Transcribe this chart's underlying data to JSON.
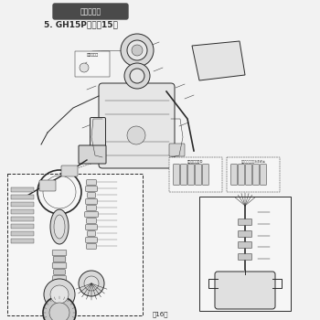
{
  "page_bg": "#f2f2f2",
  "line_color": "#2a2a2a",
  "title_box_text": "人力噴霧機",
  "subtitle_text": "5. GH15P・背負15型",
  "page_number": "－16－",
  "fig_width": 3.5,
  "fig_height": 3.5,
  "dpi": 100,
  "title_box_fill": "#4a4a4a",
  "title_text_color": "#ffffff",
  "lw_main": 0.7,
  "lw_thin": 0.35,
  "lw_thick": 1.0,
  "part_fill": "#d8d8d8",
  "part_fill2": "#c8c8c8",
  "box_fill": "#f6f6f6"
}
